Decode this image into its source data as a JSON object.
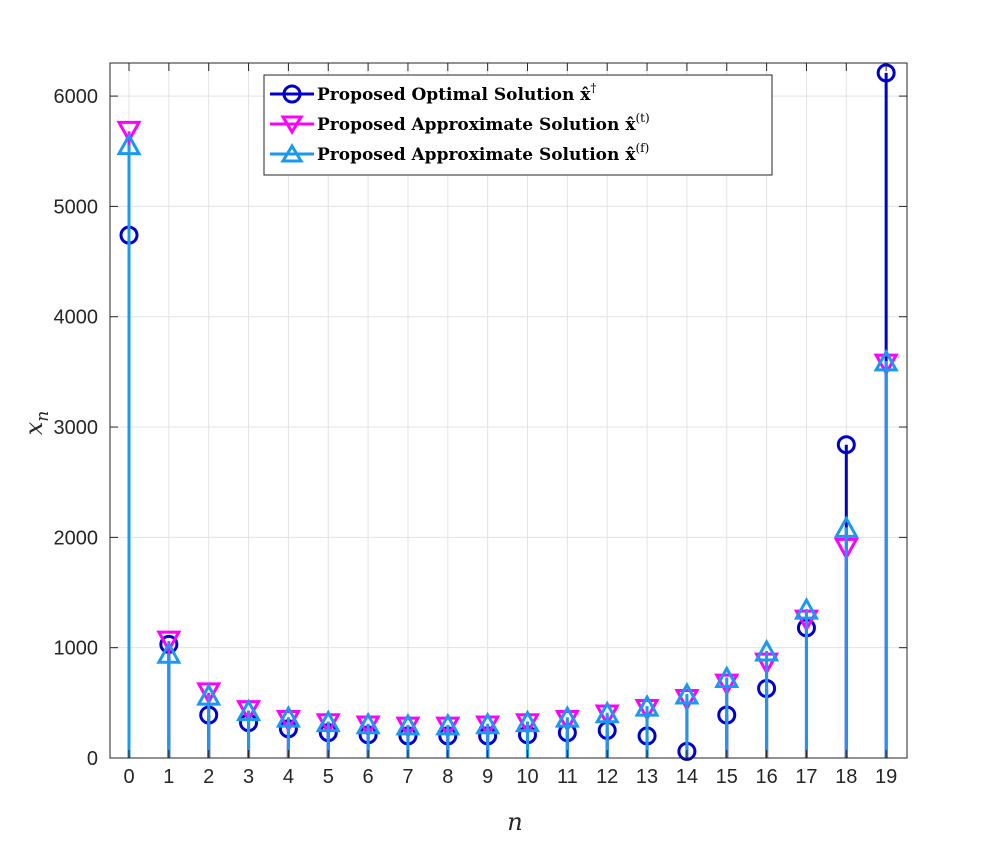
{
  "chart_data": {
    "type": "stem",
    "x": [
      0,
      1,
      2,
      3,
      4,
      5,
      6,
      7,
      8,
      9,
      10,
      11,
      12,
      13,
      14,
      15,
      16,
      17,
      18,
      19
    ],
    "series": [
      {
        "name": "Proposed Optimal Solution x̂†",
        "marker": "circle",
        "color": "#0000cc",
        "values": [
          4740,
          1030,
          390,
          320,
          265,
          230,
          210,
          200,
          200,
          200,
          210,
          230,
          250,
          200,
          60,
          390,
          630,
          1180,
          2840,
          6210
        ]
      },
      {
        "name": "Proposed Approximate Solution x̂(t)",
        "marker": "triangle-down",
        "color": "#ff00ff",
        "values": [
          5680,
          1060,
          590,
          430,
          340,
          310,
          290,
          280,
          280,
          290,
          310,
          340,
          390,
          440,
          530,
          670,
          860,
          1250,
          1900,
          3570
        ]
      },
      {
        "name": "Proposed Approximate Solution x̂(f)",
        "marker": "triangle-up",
        "color": "#1a99ef",
        "values": [
          5560,
          950,
          570,
          430,
          370,
          330,
          310,
          300,
          300,
          310,
          330,
          370,
          410,
          470,
          580,
          730,
          970,
          1350,
          2090,
          3600
        ]
      }
    ],
    "xlabel": "n",
    "ylabel": "x_n",
    "xlim": [
      0,
      20
    ],
    "ylim": [
      0,
      6300
    ],
    "xticks": [
      "0",
      "1",
      "2",
      "3",
      "4",
      "5",
      "6",
      "7",
      "8",
      "9",
      "10",
      "11",
      "12",
      "13",
      "14",
      "15",
      "16",
      "17",
      "18",
      "19"
    ],
    "yticks": [
      0,
      1000,
      2000,
      3000,
      4000,
      5000,
      6000
    ],
    "ytick_labels": [
      "0",
      "1000",
      "2000",
      "3000",
      "4000",
      "5000",
      "6000"
    ],
    "grid": true,
    "legend_position": "top-center"
  },
  "legend": {
    "items": [
      {
        "main": "Proposed Optimal Solution ",
        "sym": "x̂",
        "sup": "†"
      },
      {
        "main": "Proposed Approximate Solution ",
        "sym": "x̂",
        "sup": "(t)"
      },
      {
        "main": "Proposed Approximate Solution ",
        "sym": "x̂",
        "sup": "(f)"
      }
    ]
  },
  "axes": {
    "xlabel": "n",
    "ylabel_main": "x",
    "ylabel_sub": "n"
  }
}
